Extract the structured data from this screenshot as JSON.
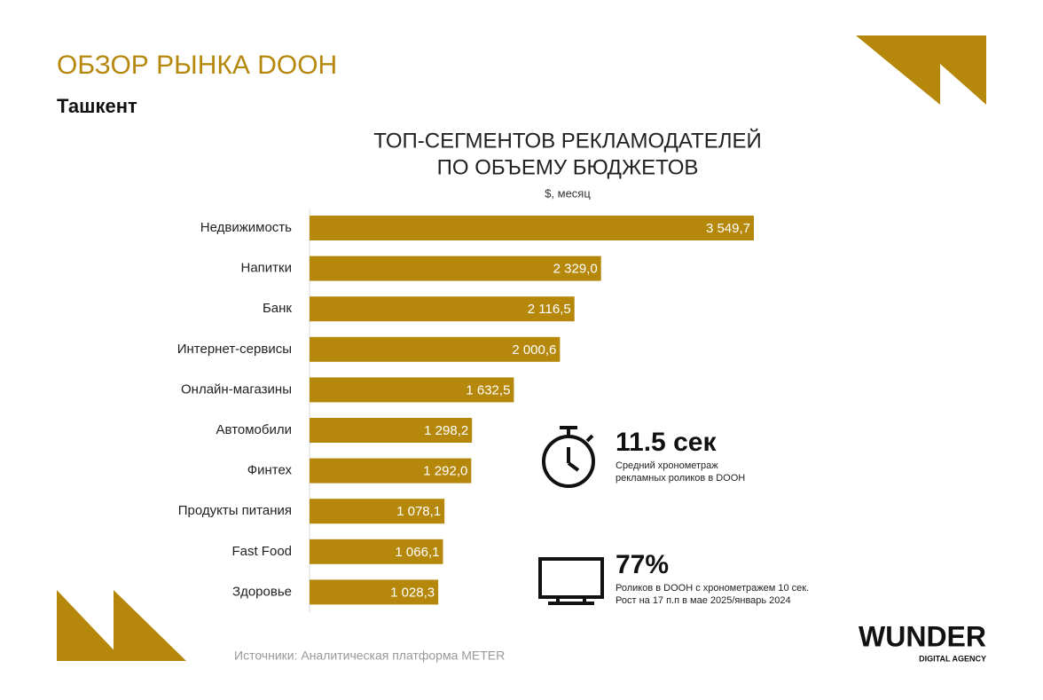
{
  "header": {
    "title": "ОБЗОР РЫНКА DOOH",
    "subtitle": "Ташкент"
  },
  "chart_data": {
    "type": "hbar",
    "title": [
      "ТОП-СЕГМЕНТОВ РЕКЛАМОДАТЕЛЕЙ",
      "ПО ОБЪЕМУ БЮДЖЕТОВ"
    ],
    "subtitle": "$, месяц",
    "color": "#b5880c",
    "categories": [
      "Недвижимость",
      "Напитки",
      "Банк",
      "Интернет-сервисы",
      "Онлайн-магазины",
      "Автомобили",
      "Финтех",
      "Продукты питания",
      "Fast Food",
      "Здоровье"
    ],
    "values": [
      3549.7,
      2329.0,
      2116.5,
      2000.6,
      1632.5,
      1298.2,
      1292.0,
      1078.1,
      1066.1,
      1028.3
    ],
    "value_labels": [
      "3 549,7",
      "2 329,0",
      "2 116,5",
      "2 000,6",
      "1 632,5",
      "1 298,2",
      "1 292,0",
      "1 078,1",
      "1 066,1",
      "1 028,3"
    ]
  },
  "stats": [
    {
      "value": "11.5 сек",
      "lines": [
        "Средний хронометраж",
        "рекламных роликов в DOOH"
      ]
    },
    {
      "value": "77%",
      "lines": [
        "Роликов в DOOH с хронометражем 10 сек.",
        "Рост на 17 п.п в мае 2025/январь 2024"
      ]
    }
  ],
  "source": "Источники: Аналитическая платформа METER",
  "logo": {
    "name": "WUNDER",
    "tagline": "DIGITAL AGENCY"
  }
}
